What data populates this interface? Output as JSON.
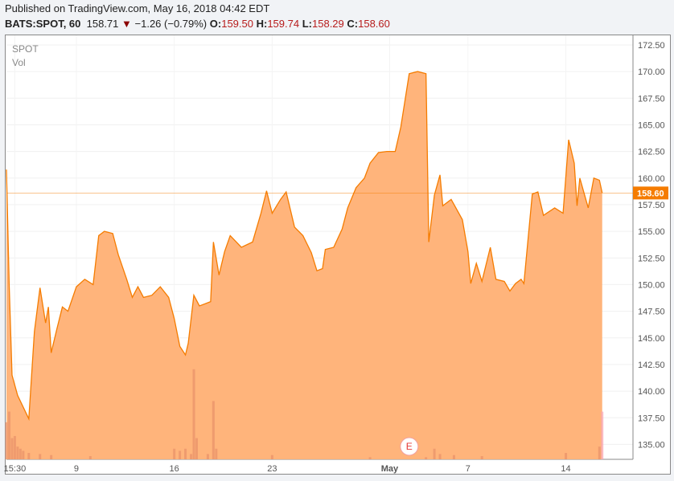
{
  "header": {
    "published": "Published on TradingView.com, May 16, 2018 04:42 EDT",
    "symbol": "BATS:SPOT, 60",
    "last": "158.71",
    "change": "−1.26 (−0.79%)",
    "o_label": "O:",
    "o": "159.50",
    "h_label": "H:",
    "h": "159.74",
    "l_label": "L:",
    "l": "158.29",
    "c_label": "C:",
    "c": "158.60"
  },
  "legend": {
    "symbol": "SPOT",
    "vol": "Vol"
  },
  "colors": {
    "line": "#f57c00",
    "fill": "#ffb074",
    "down": "#8b0000",
    "red_text": "#b71c1c",
    "earnings": "#e53935"
  },
  "chart_data": {
    "type": "area",
    "ylim": [
      133.6,
      173.4
    ],
    "xlim": [
      0,
      224
    ],
    "yticks": [
      "172.50",
      "170.00",
      "167.50",
      "165.00",
      "162.50",
      "160.00",
      "157.50",
      "155.00",
      "152.50",
      "150.00",
      "147.50",
      "145.00",
      "142.50",
      "140.00",
      "137.50",
      "135.00"
    ],
    "xticks": [
      {
        "t": 3,
        "label": "15:30"
      },
      {
        "t": 25,
        "label": "9"
      },
      {
        "t": 60,
        "label": "16"
      },
      {
        "t": 95,
        "label": "23"
      },
      {
        "t": 137,
        "label": "May"
      },
      {
        "t": 165,
        "label": "7"
      },
      {
        "t": 200,
        "label": "14"
      }
    ],
    "last_price_label": "158.60",
    "earnings_marker": {
      "t": 144,
      "label": "E"
    },
    "close": [
      [
        0,
        160.8
      ],
      [
        1,
        149.8
      ],
      [
        2,
        141.5
      ],
      [
        4,
        139.6
      ],
      [
        8,
        137.4
      ],
      [
        10,
        145.6
      ],
      [
        12,
        149.7
      ],
      [
        14,
        146.4
      ],
      [
        15,
        147.9
      ],
      [
        16,
        143.6
      ],
      [
        18,
        145.8
      ],
      [
        20,
        147.9
      ],
      [
        22,
        147.5
      ],
      [
        25,
        149.8
      ],
      [
        28,
        150.5
      ],
      [
        31,
        150
      ],
      [
        33,
        154.6
      ],
      [
        35,
        155
      ],
      [
        38,
        154.8
      ],
      [
        40,
        152.8
      ],
      [
        43,
        150.5
      ],
      [
        45,
        148.8
      ],
      [
        47,
        149.8
      ],
      [
        49,
        148.8
      ],
      [
        52,
        149
      ],
      [
        55,
        149.8
      ],
      [
        58,
        148.8
      ],
      [
        60,
        146.8
      ],
      [
        62,
        144.2
      ],
      [
        64,
        143.4
      ],
      [
        65,
        144.5
      ],
      [
        67,
        149
      ],
      [
        69,
        148
      ],
      [
        73,
        148.4
      ],
      [
        74,
        154
      ],
      [
        76,
        150.9
      ],
      [
        78,
        153.1
      ],
      [
        80,
        154.6
      ],
      [
        84,
        153.5
      ],
      [
        88,
        154
      ],
      [
        91,
        156.7
      ],
      [
        93,
        158.8
      ],
      [
        95,
        156.7
      ],
      [
        98,
        158
      ],
      [
        100,
        158.7
      ],
      [
        103,
        155.4
      ],
      [
        106,
        154.6
      ],
      [
        109,
        153
      ],
      [
        111,
        151.3
      ],
      [
        113,
        151.5
      ],
      [
        114,
        153.3
      ],
      [
        117,
        153.5
      ],
      [
        120,
        155.2
      ],
      [
        122,
        157.2
      ],
      [
        125,
        159.1
      ],
      [
        128,
        160
      ],
      [
        130,
        161.4
      ],
      [
        133,
        162.4
      ],
      [
        136,
        162.5
      ],
      [
        139,
        162.5
      ],
      [
        141,
        164.8
      ],
      [
        144,
        169.8
      ],
      [
        147,
        170
      ],
      [
        150,
        169.8
      ],
      [
        151,
        154
      ],
      [
        153,
        158.4
      ],
      [
        155,
        160.3
      ],
      [
        156,
        157.4
      ],
      [
        159,
        158
      ],
      [
        163,
        156.1
      ],
      [
        165,
        153.1
      ],
      [
        166,
        150.1
      ],
      [
        168,
        152
      ],
      [
        170,
        150.3
      ],
      [
        173,
        153.5
      ],
      [
        175,
        150.5
      ],
      [
        178,
        150.3
      ],
      [
        180,
        149.4
      ],
      [
        182,
        150.1
      ],
      [
        184,
        150.5
      ],
      [
        185,
        150.1
      ],
      [
        188,
        158.5
      ],
      [
        190,
        158.7
      ],
      [
        192,
        156.5
      ],
      [
        196,
        157.2
      ],
      [
        199,
        156.7
      ],
      [
        201,
        163.6
      ],
      [
        203,
        161.4
      ],
      [
        204,
        157.4
      ],
      [
        205,
        160
      ],
      [
        208,
        157.2
      ],
      [
        210,
        160
      ],
      [
        212,
        159.8
      ],
      [
        213,
        158.6
      ]
    ],
    "volume": [
      [
        0,
        0.35
      ],
      [
        1,
        0.45
      ],
      [
        2,
        0.2
      ],
      [
        3,
        0.22
      ],
      [
        4,
        0.12
      ],
      [
        5,
        0.1
      ],
      [
        6,
        0.08
      ],
      [
        8,
        0.06
      ],
      [
        12,
        0.05
      ],
      [
        16,
        0.04
      ],
      [
        30,
        0.03
      ],
      [
        60,
        0.1
      ],
      [
        62,
        0.08
      ],
      [
        64,
        0.1
      ],
      [
        66,
        0.05
      ],
      [
        67,
        0.85
      ],
      [
        68,
        0.2
      ],
      [
        72,
        0.05
      ],
      [
        74,
        0.55
      ],
      [
        75,
        0.1
      ],
      [
        95,
        0.04
      ],
      [
        130,
        0.02
      ],
      [
        150,
        0.02
      ],
      [
        153,
        0.1
      ],
      [
        155,
        0.05
      ],
      [
        160,
        0.04
      ],
      [
        170,
        0.03
      ],
      [
        200,
        0.06
      ],
      [
        212,
        0.12
      ],
      [
        213,
        0.45
      ]
    ]
  }
}
